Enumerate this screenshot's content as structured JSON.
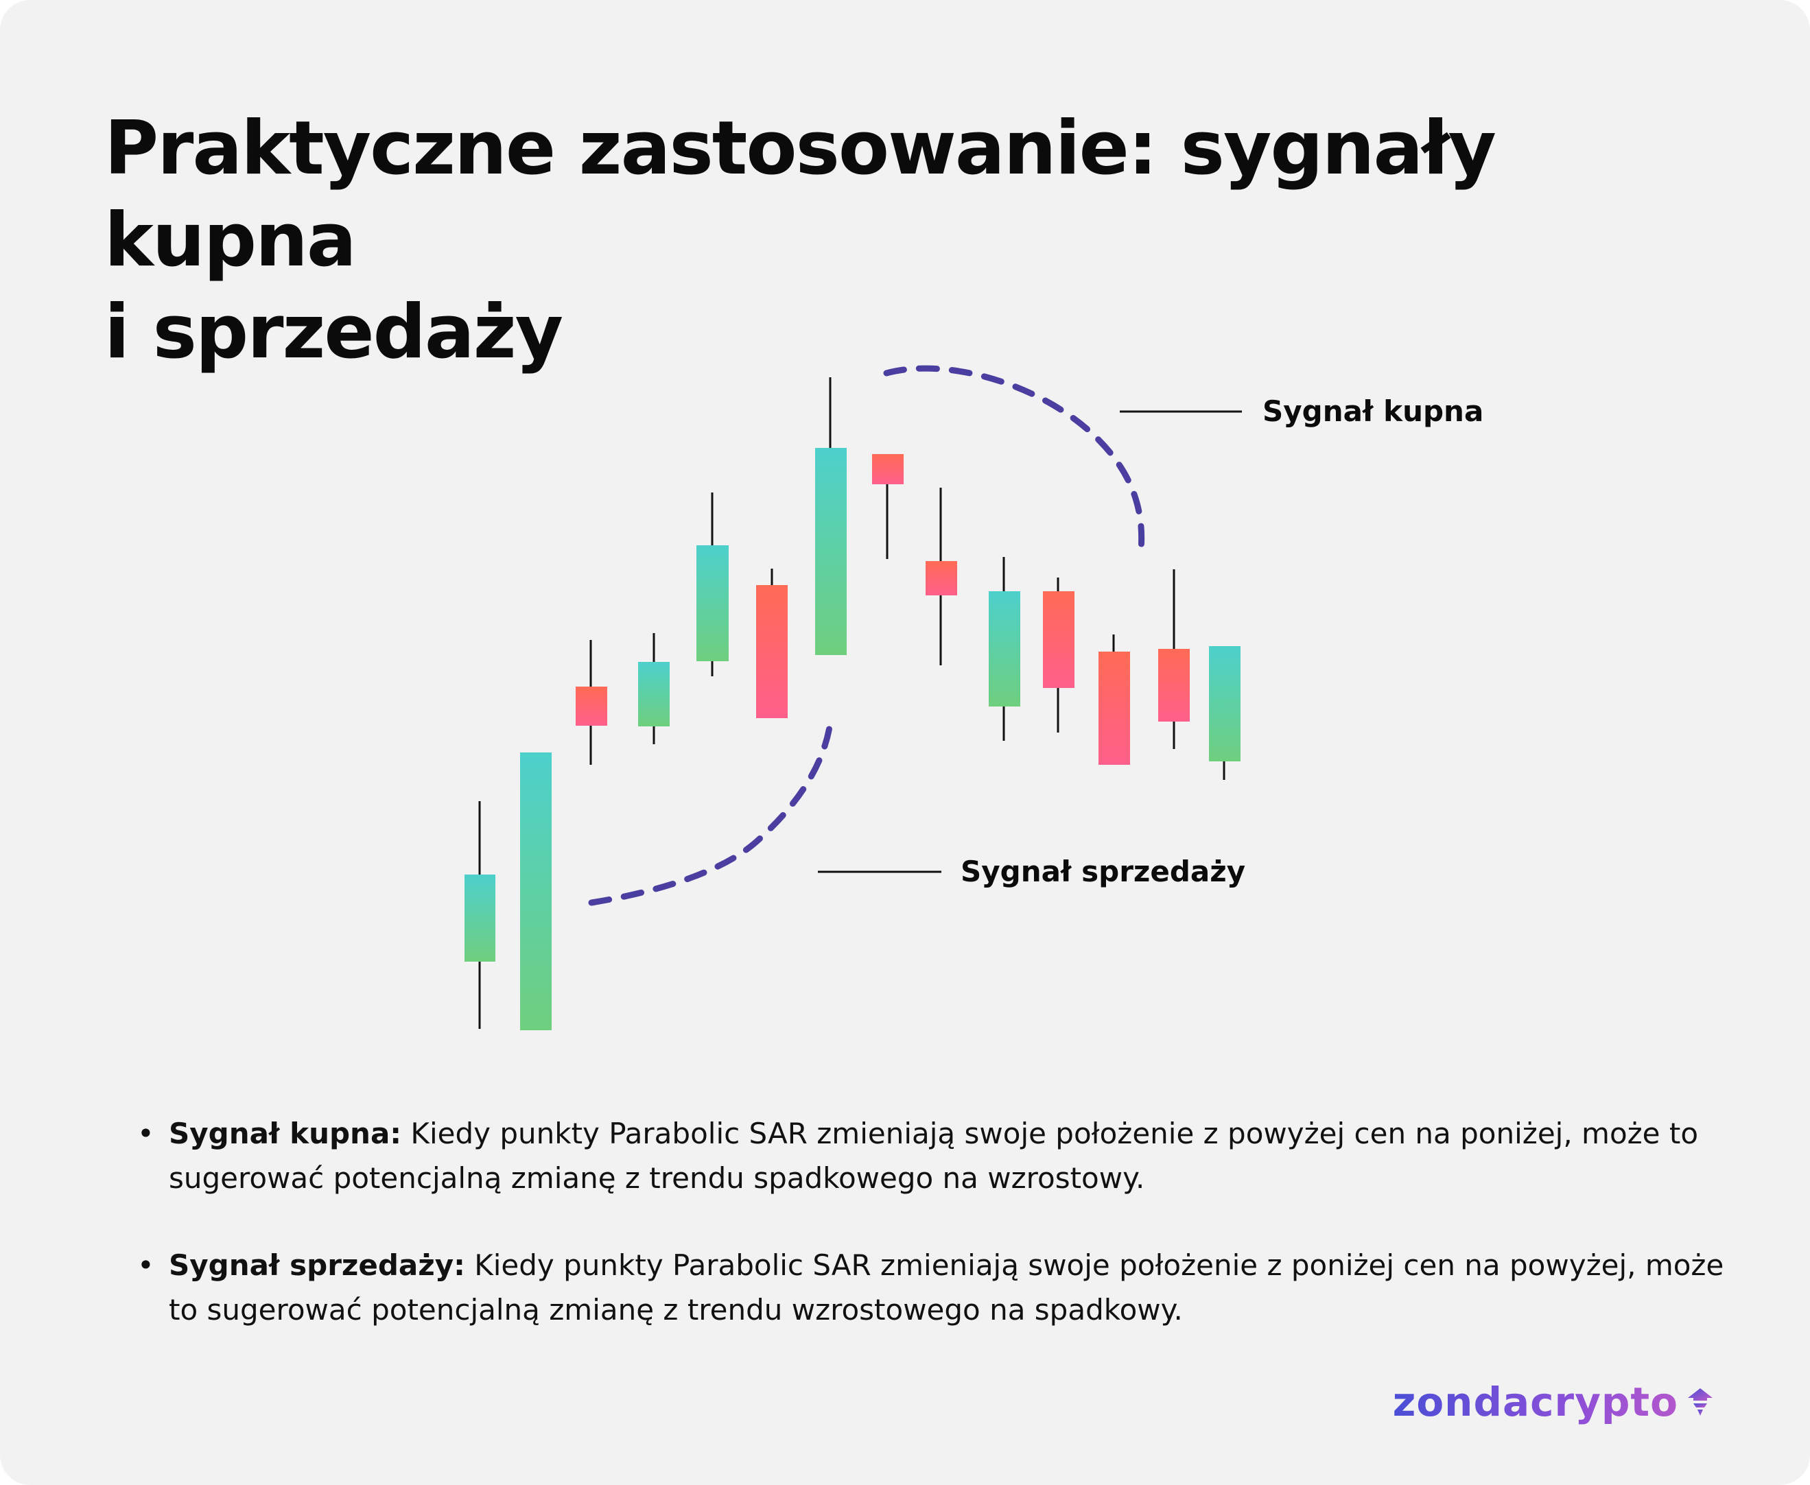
{
  "title": {
    "line1": "Praktyczne zastosowanie: sygnały kupna",
    "line2": "i sprzedaży"
  },
  "annotations": {
    "buy": "Sygnał kupna",
    "sell": "Sygnał sprzedaży"
  },
  "colors": {
    "background": "#f2f2f2",
    "bullish_gradient": [
      "#4dd0cc",
      "#6fcf7e"
    ],
    "bearish_gradient": [
      "#ff6b55",
      "#ff5f8a"
    ],
    "sar_dots": "#4a3fa0",
    "brand_gradient": [
      "#4b4fd6",
      "#c25ac8"
    ]
  },
  "bullets": [
    {
      "label": "Sygnał kupna:",
      "text": " Kiedy punkty Parabolic SAR zmieniają swoje położenie z powyżej cen na poniżej, może to sugerować potencjalną zmianę z trendu spadkowego na wzrostowy."
    },
    {
      "label": "Sygnał sprzedaży:",
      "text": " Kiedy punkty Parabolic SAR zmieniają swoje położenie z poniżej cen na powyżej, może to sugerować potencjalną zmianę z trendu wzrostowego na spadkowy."
    }
  ],
  "logo": {
    "text": "zondacrypto",
    "icon": "rocket-icon"
  }
}
